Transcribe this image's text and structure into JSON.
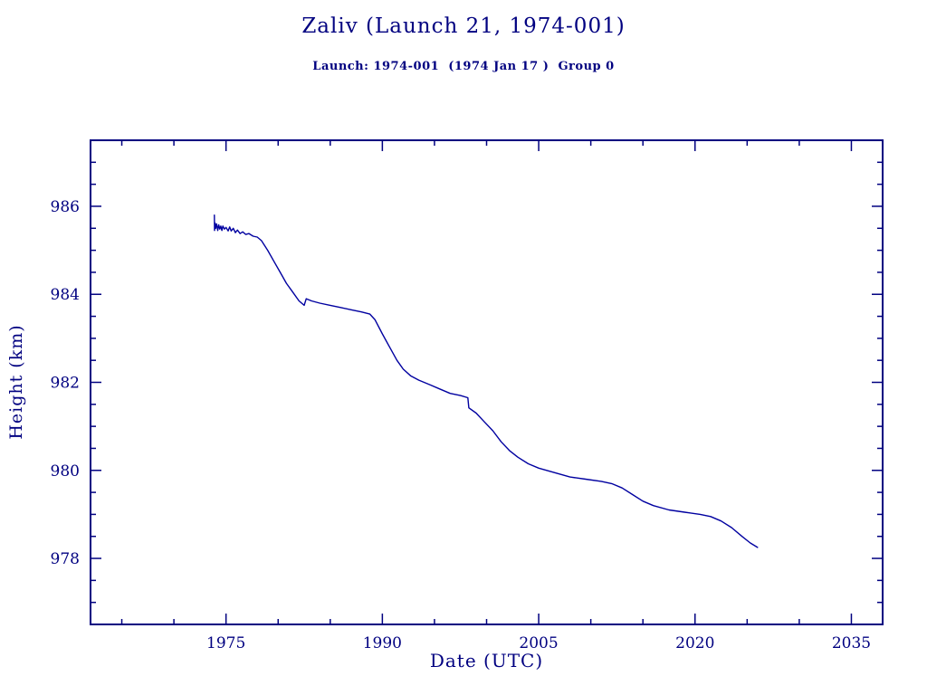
{
  "page": {
    "background": "#ffffff",
    "accent": "#000080"
  },
  "chart_data": {
    "type": "line",
    "title": "Zaliv (Launch 21, 1974-001)",
    "subtitle": "Launch: 1974-001  (1974 Jan 17 )  Group 0",
    "xlabel": "Date (UTC)",
    "ylabel": "Height (km)",
    "xlim": [
      1962,
      2038
    ],
    "ylim": [
      976.5,
      987.5
    ],
    "xticks": [
      1975,
      1990,
      2005,
      2020,
      2035
    ],
    "yticks": [
      978,
      980,
      982,
      984,
      986
    ],
    "x_minor_step": 5,
    "y_minor_step": 0.5,
    "grid": false,
    "legend": "none",
    "axis_color": "#000080",
    "line_color": "#0000a0",
    "series": [
      {
        "name": "height_km",
        "x": [
          1973.88,
          1973.9,
          1973.95,
          1974.0,
          1974.1,
          1974.2,
          1974.3,
          1974.4,
          1974.5,
          1974.6,
          1974.7,
          1974.85,
          1975.0,
          1975.2,
          1975.35,
          1975.5,
          1975.7,
          1975.9,
          1976.1,
          1976.35,
          1976.6,
          1976.9,
          1977.2,
          1977.6,
          1978.0,
          1978.4,
          1979.0,
          1979.6,
          1980.2,
          1980.8,
          1981.4,
          1982.0,
          1982.5,
          1982.7,
          1983.2,
          1984.0,
          1985.0,
          1986.0,
          1987.0,
          1988.0,
          1988.8,
          1989.3,
          1990.0,
          1990.7,
          1991.4,
          1992.0,
          1992.7,
          1993.5,
          1994.5,
          1995.5,
          1996.5,
          1997.5,
          1998.2,
          1998.3,
          1999.0,
          1999.8,
          2000.6,
          2001.4,
          2002.2,
          2003.0,
          2004.0,
          2005.0,
          2006.5,
          2008.0,
          2009.5,
          2011.0,
          2012.0,
          2013.0,
          2014.0,
          2015.0,
          2016.0,
          2017.5,
          2019.0,
          2020.5,
          2021.5,
          2022.5,
          2023.5,
          2024.5,
          2025.3,
          2026.0
        ],
        "y": [
          985.8,
          985.45,
          985.62,
          985.5,
          985.6,
          985.45,
          985.58,
          985.48,
          985.55,
          985.45,
          985.55,
          985.48,
          985.52,
          985.44,
          985.53,
          985.44,
          985.5,
          985.4,
          985.46,
          985.38,
          985.42,
          985.36,
          985.38,
          985.32,
          985.3,
          985.22,
          985.0,
          984.75,
          984.5,
          984.25,
          984.05,
          983.85,
          983.75,
          983.9,
          983.85,
          983.8,
          983.75,
          983.7,
          983.65,
          983.6,
          983.55,
          983.42,
          983.1,
          982.8,
          982.5,
          982.3,
          982.15,
          982.05,
          981.95,
          981.85,
          981.75,
          981.7,
          981.65,
          981.42,
          981.3,
          981.1,
          980.9,
          980.65,
          980.45,
          980.3,
          980.15,
          980.05,
          979.95,
          979.85,
          979.8,
          979.75,
          979.7,
          979.6,
          979.45,
          979.3,
          979.2,
          979.1,
          979.05,
          979.0,
          978.95,
          978.85,
          978.7,
          978.5,
          978.35,
          978.25
        ]
      }
    ]
  }
}
